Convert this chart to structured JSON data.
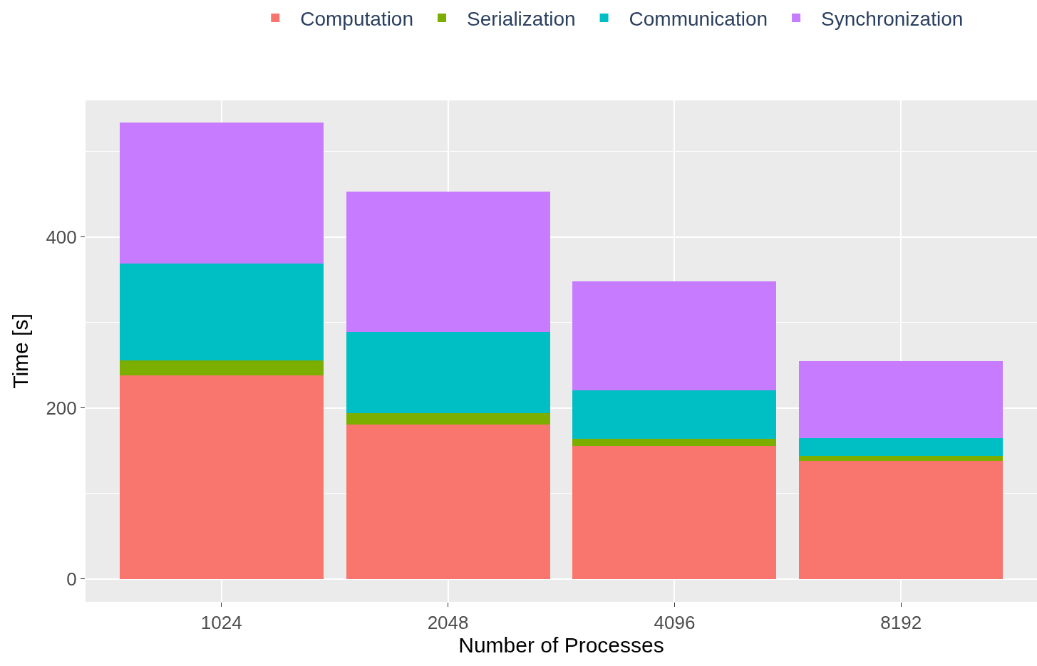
{
  "chart_data": {
    "type": "bar",
    "stacked": true,
    "xlabel": "Number of Processes",
    "ylabel": "Time [s]",
    "categories": [
      "1024",
      "2048",
      "4096",
      "8192"
    ],
    "series": [
      {
        "name": "Computation",
        "color": "#f8766d",
        "values": [
          238,
          181,
          156,
          138
        ]
      },
      {
        "name": "Serialization",
        "color": "#7cae00",
        "values": [
          18,
          13,
          8,
          6
        ]
      },
      {
        "name": "Communication",
        "color": "#00bfc4",
        "values": [
          113,
          95,
          57,
          21
        ]
      },
      {
        "name": "Synchronization",
        "color": "#c77cff",
        "values": [
          165,
          164,
          127,
          90
        ]
      }
    ],
    "ylim": [
      -27,
      560
    ],
    "yticks": [
      0,
      200,
      400
    ],
    "grid": true,
    "legend": "top"
  }
}
